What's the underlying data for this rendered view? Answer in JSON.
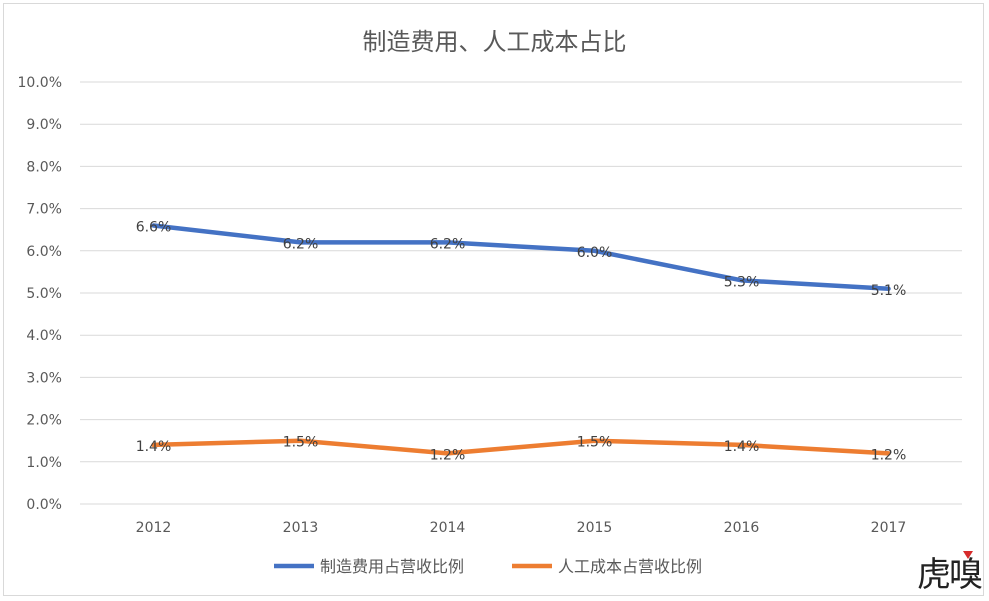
{
  "chart_data": {
    "type": "line",
    "title": "制造费用、人工成本占比",
    "categories": [
      "2012",
      "2013",
      "2014",
      "2015",
      "2016",
      "2017"
    ],
    "y_ticks": [
      "0.0%",
      "1.0%",
      "2.0%",
      "3.0%",
      "4.0%",
      "5.0%",
      "6.0%",
      "7.0%",
      "8.0%",
      "9.0%",
      "10.0%"
    ],
    "ylim": [
      0,
      10
    ],
    "grid": true,
    "legend_position": "bottom",
    "series": [
      {
        "name": "制造费用占营收比例",
        "color": "#4472c4",
        "values": [
          6.6,
          6.2,
          6.2,
          6.0,
          5.3,
          5.1
        ],
        "labels": [
          "6.6%",
          "6.2%",
          "6.2%",
          "6.0%",
          "5.3%",
          "5.1%"
        ]
      },
      {
        "name": "人工成本占营收比例",
        "color": "#ed7d31",
        "values": [
          1.4,
          1.5,
          1.2,
          1.5,
          1.4,
          1.2
        ],
        "labels": [
          "1.4%",
          "1.5%",
          "1.2%",
          "1.5%",
          "1.4%",
          "1.2%"
        ]
      }
    ]
  },
  "watermark": {
    "text": "虎嗅",
    "accent_color": "#d62b2b"
  }
}
